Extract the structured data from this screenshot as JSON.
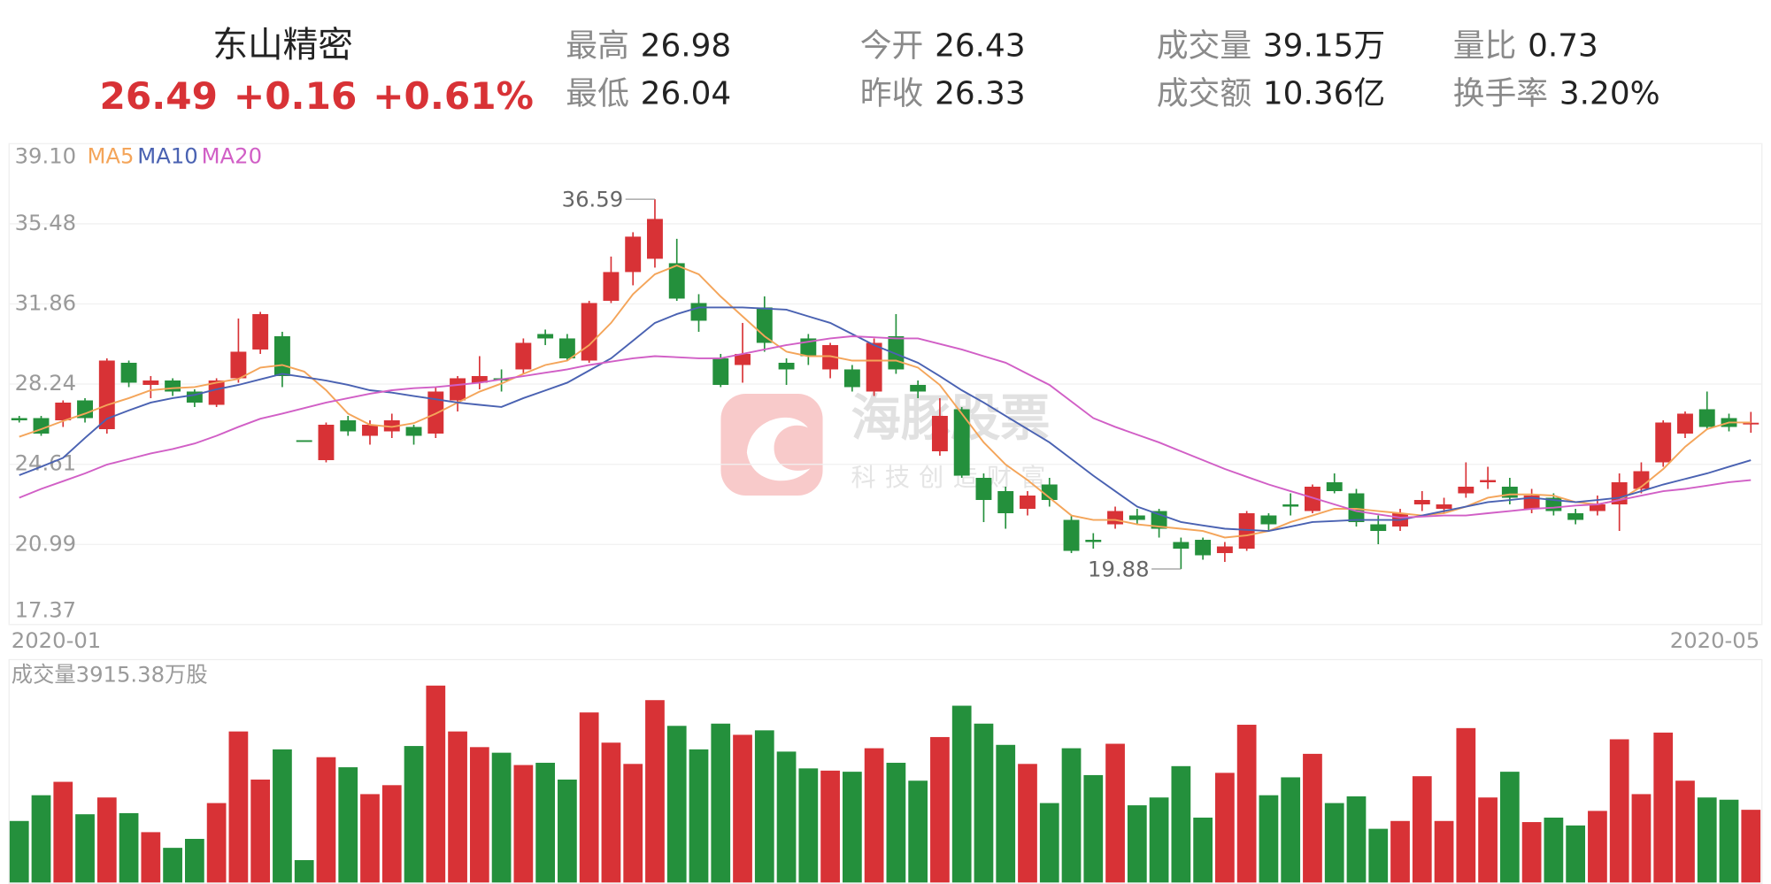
{
  "header": {
    "name": "东山精密",
    "price": "26.49",
    "change": "+0.16",
    "change_pct": "+0.61%",
    "items": [
      {
        "label": "最高",
        "value": "26.98"
      },
      {
        "label": "最低",
        "value": "26.04"
      },
      {
        "label": "今开",
        "value": "26.43"
      },
      {
        "label": "昨收",
        "value": "26.33"
      },
      {
        "label": "成交量",
        "value": "39.15万"
      },
      {
        "label": "成交额",
        "value": "10.36亿"
      },
      {
        "label": "量比",
        "value": "0.73"
      },
      {
        "label": "换手率",
        "value": "3.20%"
      }
    ]
  },
  "watermark": {
    "title": "海豚股票",
    "subtitle": "科技创造财富"
  },
  "chart_data": [
    {
      "type": "candlestick",
      "categories": [
        "2020-01",
        null,
        null,
        null,
        null,
        null,
        null,
        null,
        null,
        null,
        null,
        null,
        null,
        null,
        null,
        null,
        null,
        null,
        null,
        null,
        null,
        null,
        null,
        null,
        null,
        null,
        null,
        null,
        null,
        null,
        null,
        null,
        null,
        null,
        null,
        null,
        null,
        null,
        null,
        null,
        null,
        null,
        null,
        null,
        null,
        null,
        null,
        null,
        null,
        null,
        null,
        null,
        null,
        null,
        null,
        null,
        null,
        null,
        null,
        null,
        null,
        null,
        null,
        null,
        null,
        null,
        null,
        null,
        null,
        null,
        null,
        null,
        null,
        null,
        null,
        null,
        null,
        null,
        null,
        "2020-05"
      ],
      "open": [
        26.7,
        26.7,
        26.6,
        27.5,
        26.2,
        29.2,
        28.2,
        28.4,
        27.9,
        27.3,
        28.5,
        29.8,
        30.4,
        25.7,
        24.8,
        26.6,
        25.9,
        26.1,
        26.3,
        26.0,
        27.5,
        28.3,
        28.5,
        28.9,
        30.5,
        30.3,
        29.3,
        32.0,
        33.3,
        33.9,
        33.7,
        31.9,
        29.4,
        29.1,
        31.7,
        29.2,
        30.3,
        28.9,
        28.9,
        27.9,
        30.4,
        28.2,
        25.2,
        27.1,
        24.0,
        23.4,
        22.6,
        23.7,
        22.1,
        21.2,
        21.9,
        22.3,
        22.5,
        21.1,
        21.2,
        20.6,
        20.8,
        22.3,
        22.8,
        22.5,
        23.8,
        23.3,
        21.9,
        21.8,
        22.8,
        22.6,
        23.3,
        23.8,
        23.6,
        22.6,
        23.1,
        22.4,
        22.5,
        22.8,
        23.5,
        24.7,
        26.0,
        27.1,
        26.7,
        26.43
      ],
      "high": [
        26.8,
        26.8,
        27.5,
        27.6,
        29.4,
        29.3,
        28.6,
        28.5,
        28.0,
        28.5,
        31.2,
        31.5,
        30.6,
        25.7,
        26.5,
        26.8,
        26.6,
        26.9,
        26.4,
        28.1,
        28.6,
        29.5,
        28.9,
        30.3,
        30.7,
        30.5,
        32.0,
        34.0,
        35.1,
        36.59,
        34.8,
        32.3,
        29.6,
        31.0,
        32.2,
        29.4,
        30.5,
        30.1,
        29.1,
        30.3,
        31.4,
        28.4,
        27.6,
        27.2,
        24.2,
        23.6,
        23.4,
        24.0,
        22.3,
        21.5,
        22.7,
        22.6,
        22.6,
        21.3,
        21.3,
        21.1,
        22.5,
        22.4,
        23.3,
        23.7,
        24.2,
        23.5,
        22.3,
        22.6,
        23.4,
        23.1,
        24.7,
        24.5,
        24.0,
        23.5,
        23.3,
        22.6,
        23.2,
        24.2,
        24.7,
        26.6,
        27.0,
        27.9,
        26.9,
        26.98
      ],
      "low": [
        26.5,
        25.9,
        26.3,
        26.5,
        26.0,
        28.1,
        27.6,
        27.7,
        27.2,
        27.2,
        28.3,
        29.6,
        28.1,
        25.7,
        24.7,
        25.9,
        25.5,
        25.8,
        25.5,
        25.8,
        27.0,
        28.0,
        27.9,
        28.7,
        30.0,
        29.3,
        29.2,
        31.9,
        32.7,
        33.5,
        32.0,
        30.6,
        28.1,
        28.3,
        29.7,
        28.2,
        29.1,
        28.5,
        27.9,
        27.7,
        28.7,
        27.6,
        25.0,
        24.0,
        22.0,
        21.7,
        22.3,
        22.7,
        20.6,
        20.8,
        21.7,
        21.9,
        21.3,
        19.88,
        20.3,
        20.2,
        20.7,
        21.6,
        22.3,
        22.4,
        23.3,
        21.8,
        21.0,
        21.6,
        22.5,
        22.4,
        23.1,
        23.5,
        22.8,
        22.4,
        22.3,
        21.9,
        22.3,
        21.6,
        23.3,
        24.5,
        25.8,
        26.2,
        26.1,
        26.04
      ],
      "close": [
        26.6,
        26.0,
        27.4,
        26.7,
        29.3,
        28.3,
        28.4,
        27.9,
        27.4,
        28.4,
        29.7,
        31.4,
        28.6,
        25.7,
        26.4,
        26.1,
        26.4,
        26.6,
        25.9,
        27.9,
        28.5,
        28.6,
        28.4,
        30.1,
        30.3,
        29.4,
        31.9,
        33.3,
        34.9,
        35.7,
        32.1,
        31.1,
        28.2,
        29.6,
        30.1,
        28.9,
        29.5,
        30.0,
        28.1,
        30.1,
        28.9,
        27.9,
        26.8,
        24.1,
        23.0,
        22.4,
        23.2,
        23.0,
        20.7,
        21.1,
        22.5,
        22.1,
        21.7,
        20.8,
        20.5,
        20.9,
        22.4,
        21.9,
        22.7,
        23.6,
        23.4,
        22.0,
        21.6,
        22.4,
        23.0,
        22.8,
        23.6,
        23.9,
        23.1,
        23.2,
        22.5,
        22.1,
        22.8,
        23.8,
        24.3,
        26.5,
        26.9,
        26.3,
        26.3,
        26.49
      ],
      "up_color": "#d83236",
      "down_color": "#24903c",
      "ylim": [
        17.37,
        39.1
      ],
      "yticks": [
        {
          "value": 39.1,
          "label": "39.10"
        },
        35.48,
        31.86,
        28.24,
        24.61,
        20.99,
        17.37
      ],
      "grid": true,
      "series": [
        {
          "name": "MA5",
          "color": "#f4a55a",
          "values": [
            25.86,
            26.2,
            26.57,
            26.9,
            27.29,
            27.6,
            27.96,
            28.05,
            28.1,
            28.3,
            28.47,
            28.98,
            29.1,
            28.8,
            27.96,
            26.9,
            26.4,
            26.3,
            26.47,
            26.9,
            27.4,
            27.9,
            28.26,
            28.7,
            29.1,
            29.3,
            30.0,
            31.0,
            32.3,
            33.2,
            33.6,
            33.2,
            32.2,
            31.3,
            30.4,
            29.7,
            29.5,
            29.5,
            29.3,
            29.3,
            29.3,
            28.98,
            28.2,
            26.9,
            25.6,
            24.6,
            23.9,
            23.1,
            22.3,
            22.1,
            22.1,
            21.9,
            21.8,
            21.7,
            21.6,
            21.3,
            21.4,
            21.6,
            22.0,
            22.3,
            22.6,
            22.6,
            22.5,
            22.4,
            22.3,
            22.4,
            22.7,
            23.1,
            23.25,
            23.25,
            23.2,
            22.9,
            22.8,
            23.0,
            23.6,
            24.4,
            25.4,
            26.2,
            26.5,
            26.5
          ]
        },
        {
          "name": "MA10",
          "color": "#4a62b2",
          "values": [
            24.12,
            24.5,
            24.9,
            25.8,
            26.67,
            27.05,
            27.4,
            27.6,
            27.75,
            28.0,
            28.2,
            28.45,
            28.7,
            28.55,
            28.4,
            28.2,
            27.96,
            27.85,
            27.7,
            27.55,
            27.4,
            27.3,
            27.2,
            27.6,
            27.95,
            28.3,
            28.85,
            29.4,
            30.2,
            31.0,
            31.4,
            31.7,
            31.7,
            31.7,
            31.65,
            31.6,
            31.3,
            31.0,
            30.5,
            30.0,
            29.6,
            29.2,
            28.6,
            27.96,
            27.4,
            26.8,
            26.2,
            25.6,
            24.85,
            24.1,
            23.4,
            22.7,
            22.35,
            22.0,
            21.85,
            21.7,
            21.65,
            21.6,
            21.8,
            22.0,
            22.05,
            22.1,
            22.1,
            22.1,
            22.3,
            22.5,
            22.7,
            22.9,
            23.0,
            23.1,
            23.0,
            22.9,
            23.0,
            23.1,
            23.4,
            23.7,
            23.95,
            24.2,
            24.5,
            24.8
          ]
        },
        {
          "name": "MA20",
          "color": "#d15fc6",
          "values": [
            23.1,
            23.5,
            23.85,
            24.2,
            24.6,
            24.85,
            25.1,
            25.3,
            25.55,
            25.9,
            26.3,
            26.67,
            26.9,
            27.15,
            27.4,
            27.6,
            27.8,
            27.96,
            28.05,
            28.1,
            28.2,
            28.3,
            28.45,
            28.6,
            28.75,
            28.9,
            29.1,
            29.25,
            29.4,
            29.5,
            29.45,
            29.4,
            29.4,
            29.6,
            29.8,
            30.0,
            30.15,
            30.3,
            30.4,
            30.35,
            30.3,
            30.3,
            30.05,
            29.8,
            29.5,
            29.2,
            28.7,
            28.2,
            27.45,
            26.7,
            26.3,
            25.95,
            25.6,
            25.2,
            24.8,
            24.4,
            24.05,
            23.7,
            23.4,
            23.1,
            22.8,
            22.5,
            22.35,
            22.2,
            22.25,
            22.3,
            22.3,
            22.4,
            22.5,
            22.6,
            22.65,
            22.75,
            22.8,
            23.0,
            23.2,
            23.4,
            23.5,
            23.65,
            23.8,
            23.9
          ]
        }
      ]
    },
    {
      "type": "bar",
      "title": "成交量3915.38万股",
      "ylim": [
        0,
        12000
      ],
      "values": [
        3313,
        4699,
        5421,
        3675,
        4578,
        3735,
        2711,
        1867,
        2349,
        4277,
        8132,
        5542,
        7168,
        1205,
        6747,
        6205,
        4759,
        5241,
        7349,
        10602,
        8132,
        7289,
        6988,
        6325,
        6446,
        5542,
        9156,
        7530,
        6385,
        9819,
        8434,
        7168,
        8554,
        7952,
        8193,
        7048,
        6144,
        6024,
        5964,
        7229,
        6446,
        5482,
        7831,
        9518,
        8554,
        7410,
        6385,
        4277,
        7229,
        5783,
        7470,
        4157,
        4578,
        6265,
        3494,
        5904,
        8494,
        4699,
        5663,
        6928,
        4277,
        4638,
        2892,
        3313,
        5723,
        3313,
        8313,
        4578,
        5964,
        3253,
        3494,
        3072,
        3855,
        7711,
        4759,
        8072,
        5482,
        4578,
        4458,
        3915.38
      ]
    }
  ]
}
